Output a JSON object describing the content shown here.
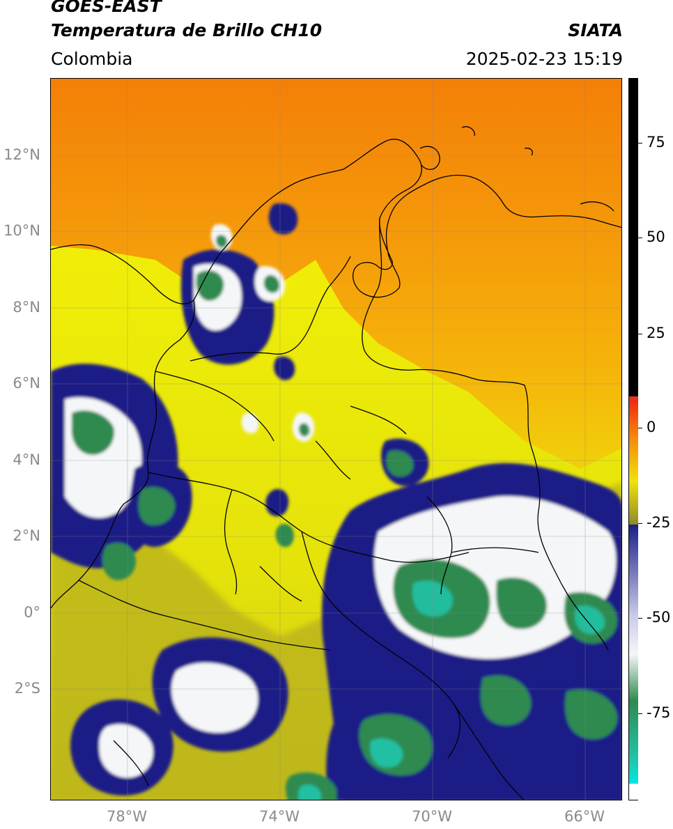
{
  "header": {
    "satellite": "GOES-EAST",
    "product": "Temperatura de Brillo CH10",
    "brand": "SIATA",
    "region": "Colombia",
    "datetime": "2025-02-23 15:19"
  },
  "map": {
    "lat_range": [
      -5,
      14
    ],
    "lon_range": [
      -80,
      -65
    ],
    "lat_ticks": [
      "12°N",
      "10°N",
      "8°N",
      "6°N",
      "4°N",
      "2°N",
      "0°",
      "2°S"
    ],
    "lon_ticks": [
      "78°W",
      "74°W",
      "70°W",
      "66°W"
    ]
  },
  "colorbar": {
    "ticks": [
      "75",
      "50",
      "25",
      "0",
      "-25",
      "-50",
      "-75"
    ],
    "range": [
      -95,
      90
    ],
    "colors": {
      "ocean_orange": "#f39a0c",
      "land_yellow": "#eaea08",
      "olive": "#b8b21e",
      "navy": "#1a1f86",
      "white": "#f4f6f8",
      "green": "#2f8a4f",
      "cyan": "#1ec9b0",
      "red": "#e8321a",
      "black": "#000000"
    }
  }
}
